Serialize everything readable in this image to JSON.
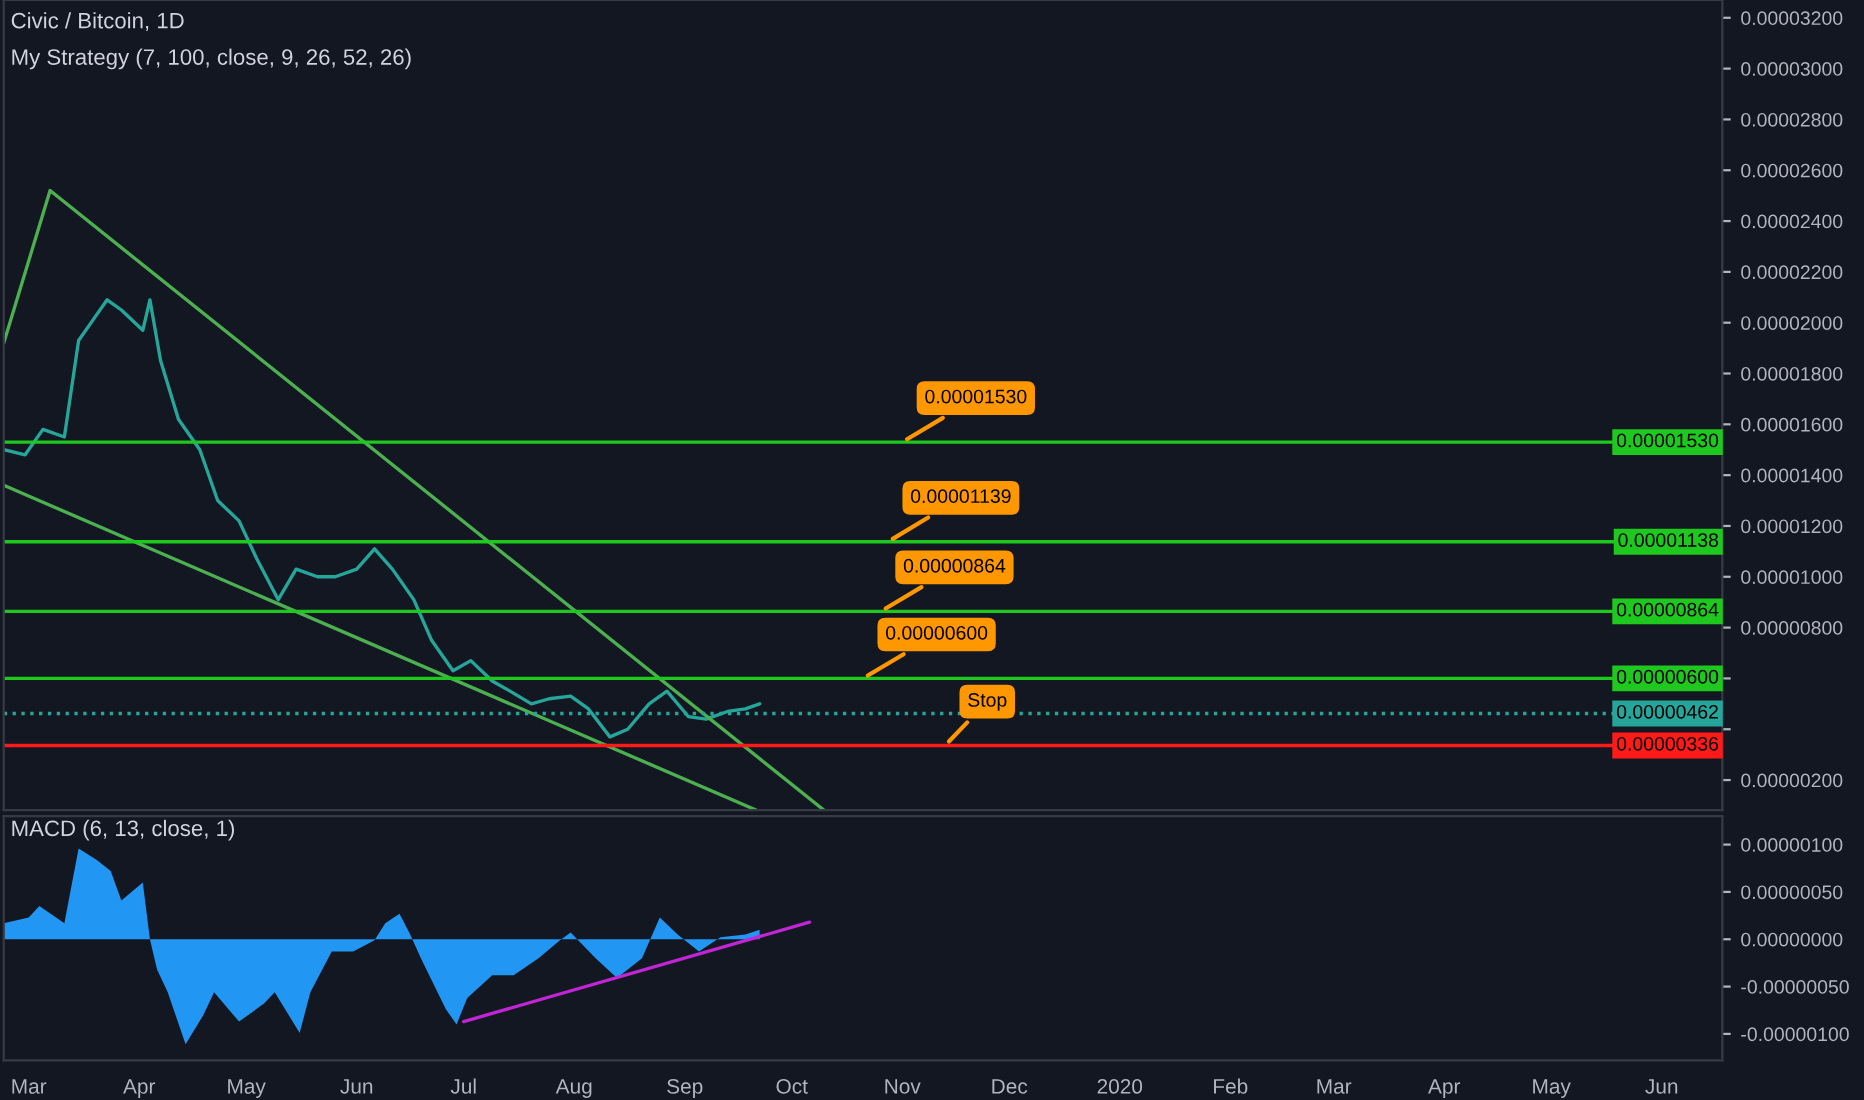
{
  "chart_data": [
    {
      "type": "line",
      "title": "Civic / Bitcoin, 1D",
      "subtitle": "My Strategy (7, 100, close, 9, 26, 52, 26)",
      "xlim": [
        "2019-02-22",
        "2020-06-18"
      ],
      "tick_labels": "y",
      "ylim": [
        8.2e-07,
        3.27e-05
      ],
      "yticks": [
        {
          "value": 2e-06,
          "label": "0.00000200"
        },
        {
          "value": 4e-06,
          "label": null
        },
        {
          "value": 6e-06,
          "label": null
        },
        {
          "value": 8e-06,
          "label": "0.00000800"
        },
        {
          "value": 1e-05,
          "label": "0.00001000"
        },
        {
          "value": 1.2e-05,
          "label": "0.00001200"
        },
        {
          "value": 1.4e-05,
          "label": "0.00001400"
        },
        {
          "value": 1.6e-05,
          "label": "0.00001600"
        },
        {
          "value": 1.8e-05,
          "label": "0.00001800"
        },
        {
          "value": 2e-05,
          "label": "0.00002000"
        },
        {
          "value": 2.2e-05,
          "label": "0.00002200"
        },
        {
          "value": 2.4e-05,
          "label": "0.00002400"
        },
        {
          "value": 2.6e-05,
          "label": "0.00002600"
        },
        {
          "value": 2.8e-05,
          "label": "0.00002800"
        },
        {
          "value": 3e-05,
          "label": "0.00003000"
        },
        {
          "value": 3.2e-05,
          "label": "0.00003200"
        }
      ],
      "series": [
        {
          "color": "#26a69a",
          "x": [
            "2019-02-22",
            "2019-02-28",
            "2019-03-05",
            "2019-03-11",
            "2019-03-15",
            "2019-03-19",
            "2019-03-23",
            "2019-03-27",
            "2019-04-02",
            "2019-04-04",
            "2019-04-07",
            "2019-04-12",
            "2019-04-18",
            "2019-04-23",
            "2019-04-29",
            "2019-05-04",
            "2019-05-10",
            "2019-05-15",
            "2019-05-21",
            "2019-05-26",
            "2019-06-01",
            "2019-06-06",
            "2019-06-11",
            "2019-06-17",
            "2019-06-22",
            "2019-06-28",
            "2019-07-03",
            "2019-07-09",
            "2019-07-14",
            "2019-07-20",
            "2019-07-25",
            "2019-07-31",
            "2019-08-05",
            "2019-08-11",
            "2019-08-16",
            "2019-08-22",
            "2019-08-27",
            "2019-09-02",
            "2019-09-07",
            "2019-09-13",
            "2019-09-18",
            "2019-09-22"
          ],
          "values": [
            1.5e-05,
            1.48e-05,
            1.58e-05,
            1.55e-05,
            1.93e-05,
            2.01e-05,
            2.09e-05,
            2.05e-05,
            1.97e-05,
            2.09e-05,
            1.85e-05,
            1.62e-05,
            1.5e-05,
            1.3e-05,
            1.22e-05,
            1.07e-05,
            9.1e-06,
            1.03e-05,
            1e-05,
            1e-05,
            1.03e-05,
            1.11e-05,
            1.03e-05,
            9.1e-06,
            7.5e-06,
            6.3e-06,
            6.7e-06,
            5.9e-06,
            5.5e-06,
            5e-06,
            5.2e-06,
            5.3e-06,
            4.8e-06,
            3.7e-06,
            4e-06,
            5e-06,
            5.5e-06,
            4.5e-06,
            4.4e-06,
            4.7e-06,
            4.8e-06,
            5e-06
          ]
        },
        {
          "type": "line",
          "color": "#4caf50",
          "x": [
            "2019-02-22",
            "2019-03-07",
            "2019-10-10"
          ],
          "values": [
            1.92e-05,
            2.52e-05,
            8.2e-07
          ]
        },
        {
          "type": "line",
          "color": "#4caf50",
          "x": [
            "2019-02-22",
            "2019-09-21"
          ],
          "values": [
            1.36e-05,
            8.2e-07
          ]
        }
      ],
      "ref_lines": [
        {
          "axis": "y",
          "value": 1.53e-05,
          "label": "0.00001530",
          "color": "#1ec81e"
        },
        {
          "axis": "y",
          "value": 1.138e-05,
          "label": "0.00001138",
          "color": "#1ec81e"
        },
        {
          "axis": "y",
          "value": 8.64e-06,
          "label": "0.00000864",
          "color": "#1ec81e"
        },
        {
          "axis": "y",
          "value": 6e-06,
          "label": "0.00000600",
          "color": "#1ec81e"
        },
        {
          "axis": "y",
          "value": 4.62e-06,
          "label": "0.00000462",
          "color": "#26a69a",
          "line_style": "dotted"
        },
        {
          "axis": "y",
          "value": 3.36e-06,
          "label": "0.00000336",
          "color": "#ff1a1a"
        }
      ],
      "annotations": [
        {
          "text": "0.00001530",
          "x": "2019-11-01",
          "y": 1.53e-05
        },
        {
          "text": "0.00001139",
          "x": "2019-10-28",
          "y": 1.138e-05
        },
        {
          "text": "0.00000864",
          "x": "2019-10-26",
          "y": 8.64e-06
        },
        {
          "text": "0.00000600",
          "x": "2019-10-21",
          "y": 6e-06
        },
        {
          "text": "Stop",
          "x": "2019-11-13",
          "y": 3.36e-06
        }
      ],
      "grid": false,
      "legend": false
    },
    {
      "type": "area",
      "title": "MACD (6, 13, close, 1)",
      "xlim": [
        "2019-02-22",
        "2020-06-18"
      ],
      "xticks": [
        {
          "value": "2019-03-01",
          "label": "Mar"
        },
        {
          "value": "2019-04-01",
          "label": "Apr"
        },
        {
          "value": "2019-05-01",
          "label": "May"
        },
        {
          "value": "2019-06-01",
          "label": "Jun"
        },
        {
          "value": "2019-07-01",
          "label": "Jul"
        },
        {
          "value": "2019-08-01",
          "label": "Aug"
        },
        {
          "value": "2019-09-01",
          "label": "Sep"
        },
        {
          "value": "2019-10-01",
          "label": "Oct"
        },
        {
          "value": "2019-11-01",
          "label": "Nov"
        },
        {
          "value": "2019-12-01",
          "label": "Dec"
        },
        {
          "value": "2020-01-01",
          "label": "2020"
        },
        {
          "value": "2020-02-01",
          "label": "Feb"
        },
        {
          "value": "2020-03-01",
          "label": "Mar"
        },
        {
          "value": "2020-04-01",
          "label": "Apr"
        },
        {
          "value": "2020-05-01",
          "label": "May"
        },
        {
          "value": "2020-06-01",
          "label": "Jun"
        }
      ],
      "ylim": [
        -1.28e-06,
        1.3e-06
      ],
      "yticks": [
        {
          "value": -1e-06,
          "label": "-0.00000100"
        },
        {
          "value": -5e-07,
          "label": "-0.00000050"
        },
        {
          "value": 0,
          "label": "0.00000000"
        },
        {
          "value": 5e-07,
          "label": "0.00000050"
        },
        {
          "value": 1e-06,
          "label": "0.00000100"
        }
      ],
      "series": [
        {
          "color": "#2196f3",
          "x": [
            "2019-02-22",
            "2019-03-01",
            "2019-03-04",
            "2019-03-11",
            "2019-03-15",
            "2019-03-20",
            "2019-03-24",
            "2019-03-27",
            "2019-04-02",
            "2019-04-04",
            "2019-04-06",
            "2019-04-09",
            "2019-04-14",
            "2019-04-19",
            "2019-04-22",
            "2019-04-29",
            "2019-05-06",
            "2019-05-09",
            "2019-05-16",
            "2019-05-19",
            "2019-05-25",
            "2019-05-31",
            "2019-06-06",
            "2019-06-09",
            "2019-06-13",
            "2019-06-16",
            "2019-06-19",
            "2019-06-26",
            "2019-06-29",
            "2019-07-02",
            "2019-07-09",
            "2019-07-15",
            "2019-07-22",
            "2019-07-28",
            "2019-07-31",
            "2019-08-07",
            "2019-08-13",
            "2019-08-20",
            "2019-08-25",
            "2019-08-30",
            "2019-09-05",
            "2019-09-11",
            "2019-09-18",
            "2019-09-22"
          ],
          "values": [
            1.7e-07,
            2.3e-07,
            3.5e-07,
            1.7e-07,
            9.6e-07,
            8.4e-07,
            7.2e-07,
            4.1e-07,
            6e-07,
            0,
            -3.2e-07,
            -5.6e-07,
            -1.11e-06,
            -8e-07,
            -5.6e-07,
            -8.7e-07,
            -6.8e-07,
            -5.6e-07,
            -9.9e-07,
            -5.6e-07,
            -1.3e-07,
            -1.3e-07,
            -1e-08,
            1.7e-07,
            2.7e-07,
            5e-08,
            -2e-07,
            -7.4e-07,
            -9e-07,
            -6.2e-07,
            -3.8e-07,
            -3.8e-07,
            -2e-07,
            -1e-08,
            7e-08,
            -2e-07,
            -4.1e-07,
            -2e-07,
            2.3e-07,
            5e-08,
            -1.3e-07,
            2e-08,
            5e-08,
            1e-07
          ]
        },
        {
          "type": "line",
          "color": "#c026d3",
          "x": [
            "2019-07-01",
            "2019-10-06"
          ],
          "values": [
            -8.7e-07,
            1.8e-07
          ]
        }
      ],
      "grid": false,
      "legend": false
    }
  ]
}
